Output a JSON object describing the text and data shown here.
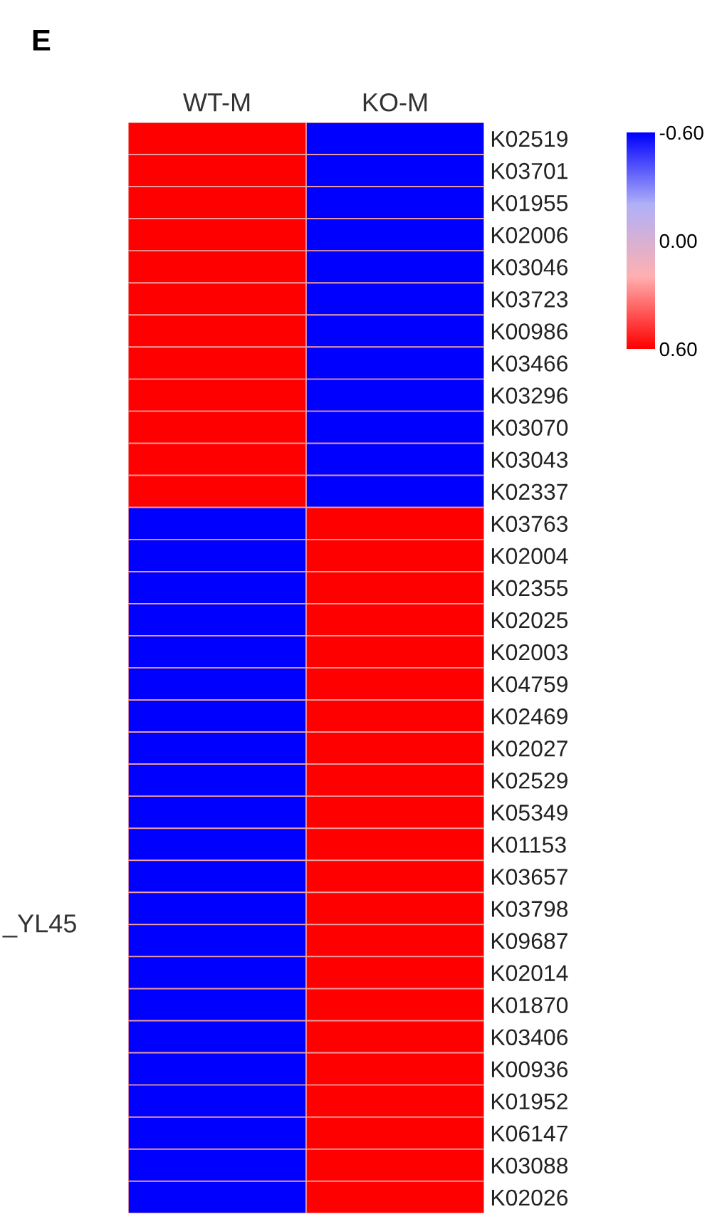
{
  "chart_data": {
    "type": "heatmap",
    "title": "E",
    "categories": [
      "WT-M",
      "KO-M"
    ],
    "y_categories": [
      "K02519",
      "K03701",
      "K01955",
      "K02006",
      "K03046",
      "K03723",
      "K00986",
      "K03466",
      "K03296",
      "K03070",
      "K03043",
      "K02337",
      "K03763",
      "K02004",
      "K02355",
      "K02025",
      "K02003",
      "K04759",
      "K02469",
      "K02027",
      "K02529",
      "K05349",
      "K01153",
      "K03657",
      "K03798",
      "K09687",
      "K02014",
      "K01870",
      "K03406",
      "K00936",
      "K01952",
      "K06147",
      "K03088",
      "K02026"
    ],
    "cells": [
      [
        0.6,
        -0.6
      ],
      [
        0.6,
        -0.6
      ],
      [
        0.6,
        -0.6
      ],
      [
        0.6,
        -0.6
      ],
      [
        0.6,
        -0.6
      ],
      [
        0.6,
        -0.6
      ],
      [
        0.6,
        -0.6
      ],
      [
        0.6,
        -0.6
      ],
      [
        0.6,
        -0.6
      ],
      [
        0.6,
        -0.6
      ],
      [
        0.6,
        -0.6
      ],
      [
        0.6,
        -0.6
      ],
      [
        -0.6,
        0.6
      ],
      [
        -0.6,
        0.6
      ],
      [
        -0.6,
        0.6
      ],
      [
        -0.6,
        0.6
      ],
      [
        -0.6,
        0.6
      ],
      [
        -0.6,
        0.6
      ],
      [
        -0.6,
        0.6
      ],
      [
        -0.6,
        0.6
      ],
      [
        -0.6,
        0.6
      ],
      [
        -0.6,
        0.6
      ],
      [
        -0.6,
        0.6
      ],
      [
        -0.6,
        0.6
      ],
      [
        -0.6,
        0.6
      ],
      [
        -0.6,
        0.6
      ],
      [
        -0.6,
        0.6
      ],
      [
        -0.6,
        0.6
      ],
      [
        -0.6,
        0.6
      ],
      [
        -0.6,
        0.6
      ],
      [
        -0.6,
        0.6
      ],
      [
        -0.6,
        0.6
      ],
      [
        -0.6,
        0.6
      ],
      [
        -0.6,
        0.6
      ]
    ],
    "clim": [
      -0.6,
      0.6
    ],
    "cticks": [
      {
        "value": -0.6,
        "label": "-0.60"
      },
      {
        "value": 0.0,
        "label": "0.00"
      },
      {
        "value": 0.6,
        "label": "0.60"
      }
    ],
    "annotations": [
      "_YL45"
    ]
  }
}
